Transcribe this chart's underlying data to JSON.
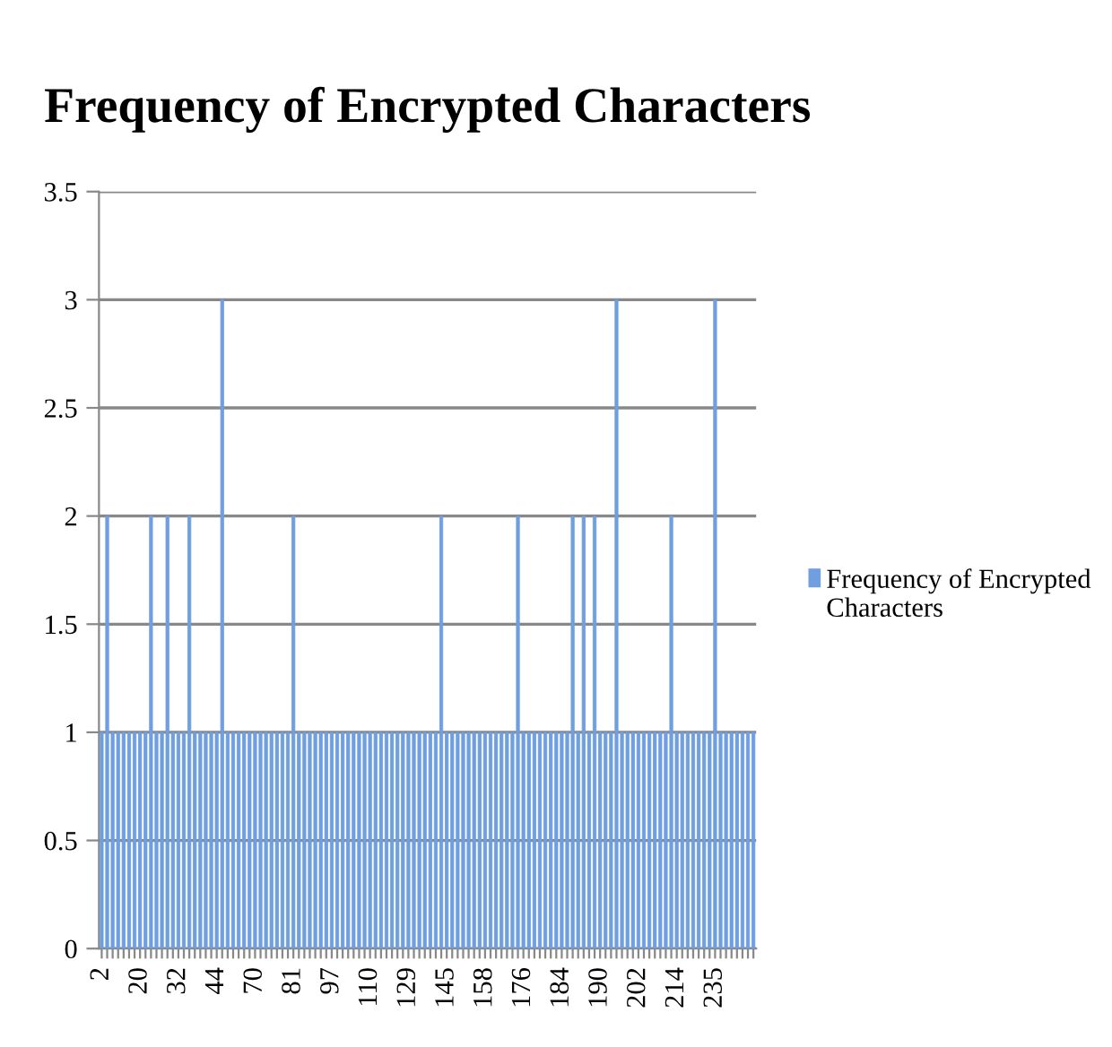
{
  "chart_data": {
    "type": "bar",
    "title": "Frequency of Encrypted Characters",
    "categories": [
      "2",
      null,
      null,
      null,
      null,
      null,
      null,
      "20",
      null,
      null,
      null,
      null,
      null,
      null,
      "32",
      null,
      null,
      null,
      null,
      null,
      null,
      "44",
      null,
      null,
      null,
      null,
      null,
      null,
      "70",
      null,
      null,
      null,
      null,
      null,
      null,
      "81",
      null,
      null,
      null,
      null,
      null,
      null,
      "97",
      null,
      null,
      null,
      null,
      null,
      null,
      "110",
      null,
      null,
      null,
      null,
      null,
      null,
      "129",
      null,
      null,
      null,
      null,
      null,
      null,
      "145",
      null,
      null,
      null,
      null,
      null,
      null,
      "158",
      null,
      null,
      null,
      null,
      null,
      null,
      "176",
      null,
      null,
      null,
      null,
      null,
      null,
      "184",
      null,
      null,
      null,
      null,
      null,
      null,
      "190",
      null,
      null,
      null,
      null,
      null,
      null,
      "202",
      null,
      null,
      null,
      null,
      null,
      null,
      "214",
      null,
      null,
      null,
      null,
      null,
      null,
      "235",
      null,
      null,
      null,
      null,
      null,
      null,
      null
    ],
    "series": [
      {
        "name": "Frequency of Encrypted Characters",
        "color": "#6f9fe0",
        "values": [
          1,
          2,
          1,
          1,
          1,
          1,
          1,
          1,
          1,
          2,
          1,
          1,
          2,
          1,
          1,
          1,
          2,
          1,
          1,
          1,
          1,
          1,
          3,
          1,
          1,
          1,
          1,
          1,
          1,
          1,
          1,
          1,
          1,
          1,
          1,
          2,
          1,
          1,
          1,
          1,
          1,
          1,
          1,
          1,
          1,
          1,
          1,
          1,
          1,
          1,
          1,
          1,
          1,
          1,
          1,
          1,
          1,
          1,
          1,
          1,
          1,
          1,
          2,
          1,
          1,
          1,
          1,
          1,
          1,
          1,
          1,
          1,
          1,
          1,
          1,
          1,
          2,
          1,
          1,
          1,
          1,
          1,
          1,
          1,
          1,
          1,
          2,
          1,
          2,
          1,
          2,
          1,
          1,
          1,
          3,
          1,
          1,
          1,
          1,
          1,
          1,
          1,
          1,
          1,
          2,
          1,
          1,
          1,
          1,
          1,
          1,
          1,
          3,
          1,
          1,
          1,
          1,
          1,
          1,
          1
        ]
      }
    ],
    "ylim": [
      0,
      3.5
    ],
    "yticks": [
      0,
      0.5,
      1,
      1.5,
      2,
      2.5,
      3,
      3.5
    ],
    "grid": "y",
    "legend": "right"
  }
}
